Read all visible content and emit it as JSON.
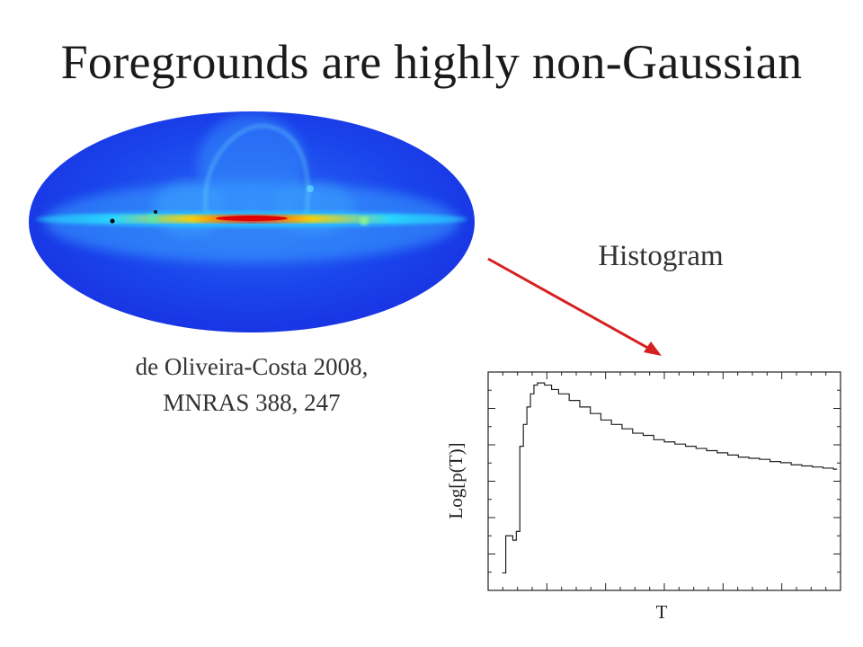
{
  "slide": {
    "title": "Foregrounds are highly non-Gaussian",
    "citation_line1": "de Oliveira-Costa 2008,",
    "citation_line2": "MNRAS 388, 247",
    "histogram_label": "Histogram"
  },
  "colors": {
    "arrow": "#d62020",
    "sky_background": "#1730e8",
    "galactic_plane": "#ff2000"
  },
  "chart_data": {
    "type": "line",
    "step": true,
    "xlabel": "T",
    "ylabel": "Log[p(T)]",
    "xlim": [
      0,
      1
    ],
    "ylim": [
      0,
      1
    ],
    "grid": false,
    "x": [
      0.04,
      0.05,
      0.07,
      0.08,
      0.09,
      0.1,
      0.11,
      0.12,
      0.13,
      0.14,
      0.16,
      0.18,
      0.2,
      0.23,
      0.26,
      0.29,
      0.32,
      0.35,
      0.38,
      0.41,
      0.44,
      0.47,
      0.5,
      0.53,
      0.56,
      0.59,
      0.62,
      0.65,
      0.68,
      0.71,
      0.74,
      0.77,
      0.8,
      0.83,
      0.86,
      0.89,
      0.92,
      0.95,
      0.98
    ],
    "values": [
      0.08,
      0.25,
      0.23,
      0.27,
      0.66,
      0.76,
      0.84,
      0.9,
      0.94,
      0.95,
      0.94,
      0.92,
      0.9,
      0.87,
      0.84,
      0.81,
      0.78,
      0.76,
      0.74,
      0.72,
      0.71,
      0.69,
      0.68,
      0.67,
      0.66,
      0.65,
      0.64,
      0.63,
      0.62,
      0.61,
      0.605,
      0.6,
      0.59,
      0.585,
      0.575,
      0.57,
      0.565,
      0.56,
      0.555
    ]
  }
}
